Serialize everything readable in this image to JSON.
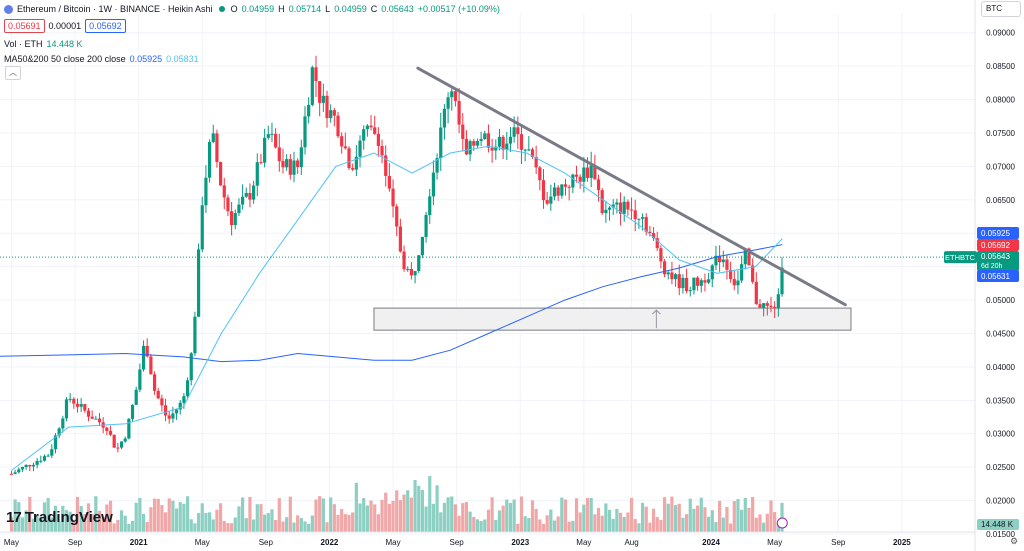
{
  "header": {
    "title": "Ethereum / Bitcoin · 1W · BINANCE · Heikin Ashi",
    "ohlc": {
      "o_label": "O",
      "o": "0.04959",
      "h_label": "H",
      "h": "0.05714",
      "l_label": "L",
      "l": "0.04959",
      "c_label": "C",
      "c": "0.05643",
      "change": "+0.00517 (+10.09%)"
    },
    "sell_price": "0.05691",
    "spread": "0.00001",
    "buy_price": "0.05692",
    "volume_label": "Vol · ETH",
    "volume_value": "14.448 K",
    "ma_label": "MA50&200 50 close 200 close",
    "ma50_value": "0.05925",
    "ma200_value": "0.05831",
    "collapse_icon": "chevron-up-icon"
  },
  "currency_select": "BTC",
  "branding": {
    "logo_text": "TradingView",
    "logo_mark": "17"
  },
  "colors": {
    "up": "#089981",
    "down": "#f23645",
    "up_vol": "#8ccfc3",
    "down_vol": "#f0a7a8",
    "ma50": "#2962ff",
    "ma200": "#4fc3f7",
    "trendline": "#787b86",
    "zone_fill": "#f0f0f0",
    "zone_border": "#787b86",
    "symbol_tag": "#089981"
  },
  "chart_data": {
    "type": "candlestick",
    "style": "Heikin Ashi",
    "symbol": "ETHBTC",
    "interval": "1W",
    "exchange": "BINANCE",
    "y_scale": {
      "min": 0.015,
      "max": 0.0925,
      "ticks": [
        "0.09000",
        "0.08500",
        "0.08000",
        "0.07500",
        "0.07000",
        "0.06500",
        "0.06000",
        "0.05500",
        "0.05000",
        "0.04500",
        "0.04000",
        "0.03500",
        "0.03000",
        "0.02500",
        "0.02000",
        "0.01500"
      ]
    },
    "x_ticks": [
      {
        "label": "May",
        "t": 0.0
      },
      {
        "label": "Sep",
        "t": 0.3333
      },
      {
        "label": "2021",
        "t": 0.6667
      },
      {
        "label": "May",
        "t": 1.0
      },
      {
        "label": "Sep",
        "t": 1.3333
      },
      {
        "label": "2022",
        "t": 1.6667
      },
      {
        "label": "May",
        "t": 2.0
      },
      {
        "label": "Sep",
        "t": 2.3333
      },
      {
        "label": "2023",
        "t": 2.6667
      },
      {
        "label": "May",
        "t": 3.0
      },
      {
        "label": "Aug",
        "t": 3.25
      },
      {
        "label": "2024",
        "t": 3.6667
      },
      {
        "label": "May",
        "t": 4.0
      },
      {
        "label": "Sep",
        "t": 4.3333
      },
      {
        "label": "2025",
        "t": 4.6667
      }
    ],
    "x_range_years": [
      -0.06,
      5.05
    ],
    "price_path": [
      [
        0.0,
        0.024
      ],
      [
        0.2,
        0.027
      ],
      [
        0.3,
        0.0355
      ],
      [
        0.4,
        0.033
      ],
      [
        0.5,
        0.031
      ],
      [
        0.55,
        0.0275
      ],
      [
        0.6,
        0.03
      ],
      [
        0.65,
        0.036
      ],
      [
        0.7,
        0.044
      ],
      [
        0.75,
        0.0365
      ],
      [
        0.82,
        0.032
      ],
      [
        0.9,
        0.035
      ],
      [
        0.95,
        0.043
      ],
      [
        1.0,
        0.065
      ],
      [
        1.05,
        0.075
      ],
      [
        1.1,
        0.067
      ],
      [
        1.15,
        0.062
      ],
      [
        1.25,
        0.066
      ],
      [
        1.35,
        0.075
      ],
      [
        1.42,
        0.07
      ],
      [
        1.5,
        0.07
      ],
      [
        1.58,
        0.085
      ],
      [
        1.62,
        0.08
      ],
      [
        1.7,
        0.077
      ],
      [
        1.78,
        0.07
      ],
      [
        1.85,
        0.075
      ],
      [
        1.92,
        0.075
      ],
      [
        2.0,
        0.063
      ],
      [
        2.05,
        0.056
      ],
      [
        2.1,
        0.053
      ],
      [
        2.15,
        0.06
      ],
      [
        2.2,
        0.068
      ],
      [
        2.25,
        0.075
      ],
      [
        2.3,
        0.083
      ],
      [
        2.38,
        0.071
      ],
      [
        2.45,
        0.075
      ],
      [
        2.55,
        0.073
      ],
      [
        2.62,
        0.075
      ],
      [
        2.7,
        0.073
      ],
      [
        2.8,
        0.065
      ],
      [
        2.88,
        0.067
      ],
      [
        2.95,
        0.068
      ],
      [
        3.05,
        0.07
      ],
      [
        3.1,
        0.063
      ],
      [
        3.2,
        0.064
      ],
      [
        3.3,
        0.063
      ],
      [
        3.42,
        0.055
      ],
      [
        3.48,
        0.053
      ],
      [
        3.55,
        0.052
      ],
      [
        3.62,
        0.053
      ],
      [
        3.68,
        0.055
      ],
      [
        3.72,
        0.057
      ],
      [
        3.8,
        0.052
      ],
      [
        3.85,
        0.057
      ],
      [
        3.9,
        0.05
      ],
      [
        3.95,
        0.049
      ],
      [
        3.98,
        0.0485
      ],
      [
        4.02,
        0.05
      ],
      [
        4.04,
        0.0564
      ]
    ],
    "ma50_path": [
      [
        0.0,
        0.0245
      ],
      [
        0.3,
        0.031
      ],
      [
        0.6,
        0.0315
      ],
      [
        0.9,
        0.034
      ],
      [
        1.1,
        0.045
      ],
      [
        1.3,
        0.054
      ],
      [
        1.5,
        0.062
      ],
      [
        1.7,
        0.07
      ],
      [
        1.9,
        0.072
      ],
      [
        2.1,
        0.069
      ],
      [
        2.3,
        0.072
      ],
      [
        2.5,
        0.073
      ],
      [
        2.7,
        0.072
      ],
      [
        2.9,
        0.069
      ],
      [
        3.1,
        0.065
      ],
      [
        3.3,
        0.061
      ],
      [
        3.5,
        0.056
      ],
      [
        3.7,
        0.054
      ],
      [
        3.9,
        0.055
      ],
      [
        4.04,
        0.0592
      ]
    ],
    "ma200_path": [
      [
        -0.06,
        0.0416
      ],
      [
        0.3,
        0.0418
      ],
      [
        0.6,
        0.042
      ],
      [
        0.9,
        0.0415
      ],
      [
        1.1,
        0.0408
      ],
      [
        1.3,
        0.041
      ],
      [
        1.5,
        0.042
      ],
      [
        1.7,
        0.0415
      ],
      [
        1.9,
        0.041
      ],
      [
        2.1,
        0.041
      ],
      [
        2.3,
        0.0425
      ],
      [
        2.5,
        0.045
      ],
      [
        2.7,
        0.0475
      ],
      [
        2.9,
        0.05
      ],
      [
        3.1,
        0.052
      ],
      [
        3.3,
        0.0535
      ],
      [
        3.5,
        0.0548
      ],
      [
        3.7,
        0.0565
      ],
      [
        3.9,
        0.0575
      ],
      [
        4.04,
        0.0583
      ]
    ],
    "trendline": {
      "from": [
        2.13,
        0.0847
      ],
      "to": [
        4.37,
        0.0493
      ]
    },
    "support_zone": {
      "x_start": 1.9,
      "x_end": 4.4,
      "top": 0.0488,
      "bottom": 0.0455
    },
    "current_tag": {
      "symbol": "ETHBTC",
      "price": "0.05643",
      "countdown": "6d 20h"
    },
    "axis_tags": [
      {
        "price": "0.05925",
        "color": "#2962ff"
      },
      {
        "price": "0.05692",
        "color": "#f23645"
      },
      {
        "price": "0.05631",
        "color": "#2962ff"
      }
    ],
    "volume_tag": "14.448 K"
  }
}
